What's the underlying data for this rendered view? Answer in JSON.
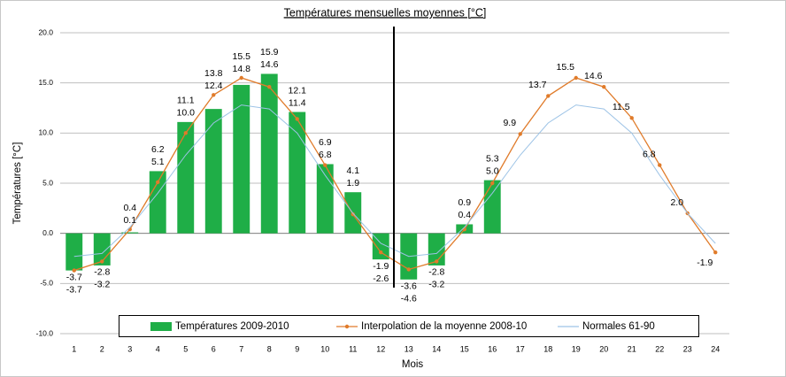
{
  "chart_data": {
    "type": "bar",
    "title": "Températures mensuelles moyennes  [°C]",
    "xlabel": "Mois",
    "ylabel": "Températures [°C]",
    "categories": [
      "1",
      "2",
      "3",
      "4",
      "5",
      "6",
      "7",
      "8",
      "9",
      "10",
      "11",
      "12",
      "13",
      "14",
      "15",
      "16",
      "17",
      "18",
      "19",
      "20",
      "21",
      "22",
      "23",
      "24"
    ],
    "ylim": [
      -10,
      20
    ],
    "yticks": [
      {
        "value": 20,
        "label": "20.0"
      },
      {
        "value": 15,
        "label": "15.0"
      },
      {
        "value": 10,
        "label": "10.0"
      },
      {
        "value": 5,
        "label": "5.0"
      },
      {
        "value": 0,
        "label": "0.0"
      },
      {
        "value": -5,
        "label": "-5.0"
      },
      {
        "value": -10,
        "label": "-10.0"
      }
    ],
    "grid": true,
    "legend": "bottom",
    "series": [
      {
        "name": "Températures 2009-2010",
        "type": "bar",
        "color": "#1fae47",
        "values": [
          -3.7,
          -3.2,
          0.1,
          6.2,
          11.1,
          12.4,
          14.8,
          15.9,
          12.1,
          6.9,
          4.1,
          -2.6,
          -4.6,
          -3.2,
          0.9,
          5.3,
          null,
          null,
          null,
          null,
          null,
          null,
          null,
          null
        ],
        "value_labels": [
          "-3.7",
          "-3.2",
          "0.1",
          "6.2",
          "11.1",
          "12.4",
          "14.8",
          "15.9",
          "12.1",
          "6.9",
          "4.1",
          "-2.6",
          "-4.6",
          "-3.2",
          "0.9",
          "5.3",
          null,
          null,
          null,
          null,
          null,
          null,
          null,
          null
        ]
      },
      {
        "name": "Interpolation de la moyenne 2008-10",
        "type": "line",
        "color": "#e07b2a",
        "values": [
          -3.7,
          -2.8,
          0.4,
          5.1,
          10.0,
          13.8,
          15.5,
          14.6,
          11.4,
          6.8,
          1.9,
          -1.9,
          -3.6,
          -2.8,
          0.4,
          5.0,
          9.9,
          13.7,
          15.5,
          14.6,
          11.5,
          6.8,
          2.0,
          -1.9
        ],
        "value_labels": [
          "-3.7",
          "-2.8",
          "0.4",
          "5.1",
          "10.0",
          "13.8",
          "15.5",
          "14.6",
          "11.4",
          "6.8",
          "1.9",
          "-1.9",
          "-3.6",
          "-2.8",
          "0.4",
          "5.0",
          "9.9",
          "13.7",
          "15.5",
          "14.6",
          "11.5",
          "6.8",
          "2.0",
          "-1.9"
        ]
      },
      {
        "name": "Normales 61-90",
        "type": "line",
        "color": "#9dc3e6",
        "values": [
          -2.3,
          -2.0,
          0.6,
          4.0,
          7.8,
          11.0,
          12.8,
          12.4,
          10.0,
          5.8,
          2.0,
          -1.0,
          -2.3,
          -2.0,
          0.6,
          4.0,
          7.8,
          11.0,
          12.8,
          12.4,
          10.0,
          5.8,
          2.0,
          -1.0
        ]
      }
    ]
  }
}
